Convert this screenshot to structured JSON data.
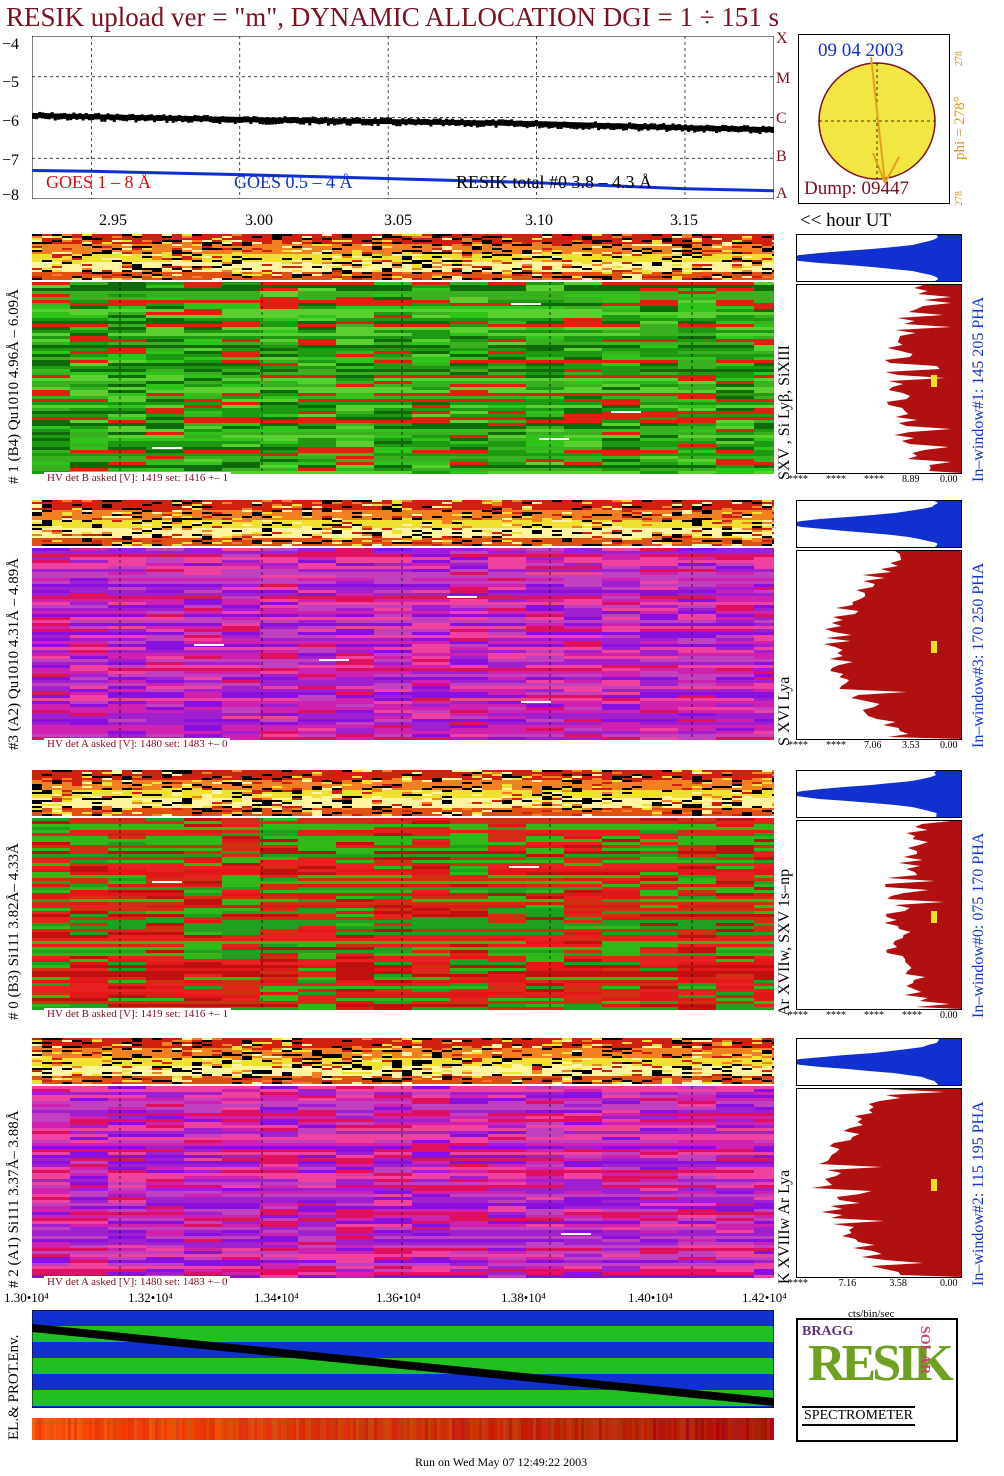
{
  "title": "RESIK upload ver = \"m\", DYNAMIC ALLOCATION  DGI =   1 ÷ 151 s",
  "goes_panel": {
    "y_ticks": [
      "−4",
      "−5",
      "−6",
      "−7",
      "−8"
    ],
    "legend": {
      "goes_long": "GOES 1 – 8 Å",
      "goes_short": "GOES 0.5 – 4 Å",
      "resik_total": "RESIK total #0  3.8 – 4.3 Å"
    },
    "x_ticks": [
      "2.95",
      "3.00",
      "3.05",
      "3.10",
      "3.15"
    ],
    "hour_label": "<< hour UT",
    "goes_classes": [
      "X",
      "M",
      "C",
      "B",
      "A"
    ],
    "colors": {
      "goes_long": "#d41010",
      "goes_short": "#1030d0",
      "resik": "#000000"
    }
  },
  "sun_panel": {
    "date": "09 04 2003",
    "phi": "phi = 278°",
    "phi_small": "278",
    "phi_bottom": "278",
    "dump": "Dump: 09447"
  },
  "channels": [
    {
      "side_label": "# 1 (B4) Qu1010 4.96Å – 6.09Å",
      "lines": "SXV , Si Lyβ, SiXIII",
      "window": "In–window#1:  145 205 PHA",
      "hv": "HV det B asked [V]:  1419 set:  1416 +–    1",
      "pha_ticks": [
        "****",
        "****",
        "****",
        "8.89",
        "0.00"
      ],
      "palette": "green"
    },
    {
      "side_label": "#3 (A2) Qu1010  4.31Å – 4.89Å",
      "lines": "S XVI Lya",
      "window": "In–window#3:  170 250 PHA",
      "hv": "HV det A asked [V]:  1480 set:  1483 +–    0",
      "pha_ticks": [
        "****",
        "****",
        "7.06",
        "3.53",
        "0.00"
      ],
      "palette": "magenta"
    },
    {
      "side_label": "# 0 (B3) Si111  3.82Å– 4.33Å",
      "lines": "Ar XVIIw,  SXV 1s–np",
      "window": "In–window#0:  075 170 PHA",
      "hv": "HV det B asked [V]:  1419 set:  1416 +–    1",
      "pha_ticks": [
        "****",
        "****",
        "****",
        "****",
        "0.00"
      ],
      "palette": "redgreen"
    },
    {
      "side_label": "# 2 (A1) Si111  3.37Å– 3.88Å",
      "lines": "K XVIIIw  Ar Lya",
      "window": "In–window#2:  115 195 PHA",
      "hv": "HV det A asked [V]:  1480 set:  1483 +–    0",
      "pha_ticks": [
        "****",
        "7.16",
        "3.58",
        "0.00"
      ],
      "palette": "magenta2"
    }
  ],
  "bottom_axis": {
    "ticks": [
      "1.30•10⁴",
      "1.32•10⁴",
      "1.34•10⁴",
      "1.36•10⁴",
      "1.38•10⁴",
      "1.40•10⁴",
      "1.42•10⁴"
    ],
    "pha_unit": "cts/bin/sec"
  },
  "env_label": "EL.& PROT.Env.",
  "logo": {
    "bragg": "BRAGG",
    "resik": "RESIK",
    "solar": "SOLAR",
    "spectrometer": "SPECTROMETER"
  },
  "footer": "Run on Wed May 07 12:49:22 2003",
  "chart_data": {
    "type": "line",
    "title": "RESIK upload ver = \"m\", DYNAMIC ALLOCATION  DGI =   1 ÷ 151 s",
    "xlabel": "<< hour UT",
    "x": [
      2.93,
      2.95,
      3.0,
      3.05,
      3.1,
      3.15,
      3.18
    ],
    "ylim": [
      -8,
      -4
    ],
    "series": [
      {
        "name": "GOES 1 – 8 Å",
        "values": [
          -5.95,
          -5.98,
          -6.05,
          -6.1,
          -6.15,
          -6.25,
          -6.3
        ]
      },
      {
        "name": "GOES 0.5 – 4 Å",
        "values": [
          -7.3,
          -7.32,
          -7.4,
          -7.5,
          -7.6,
          -7.75,
          -7.8
        ]
      },
      {
        "name": "RESIK total #0  3.8 – 4.3 Å",
        "values": [
          -5.95,
          -5.98,
          -6.05,
          -6.1,
          -6.15,
          -6.25,
          -6.3
        ]
      }
    ]
  }
}
